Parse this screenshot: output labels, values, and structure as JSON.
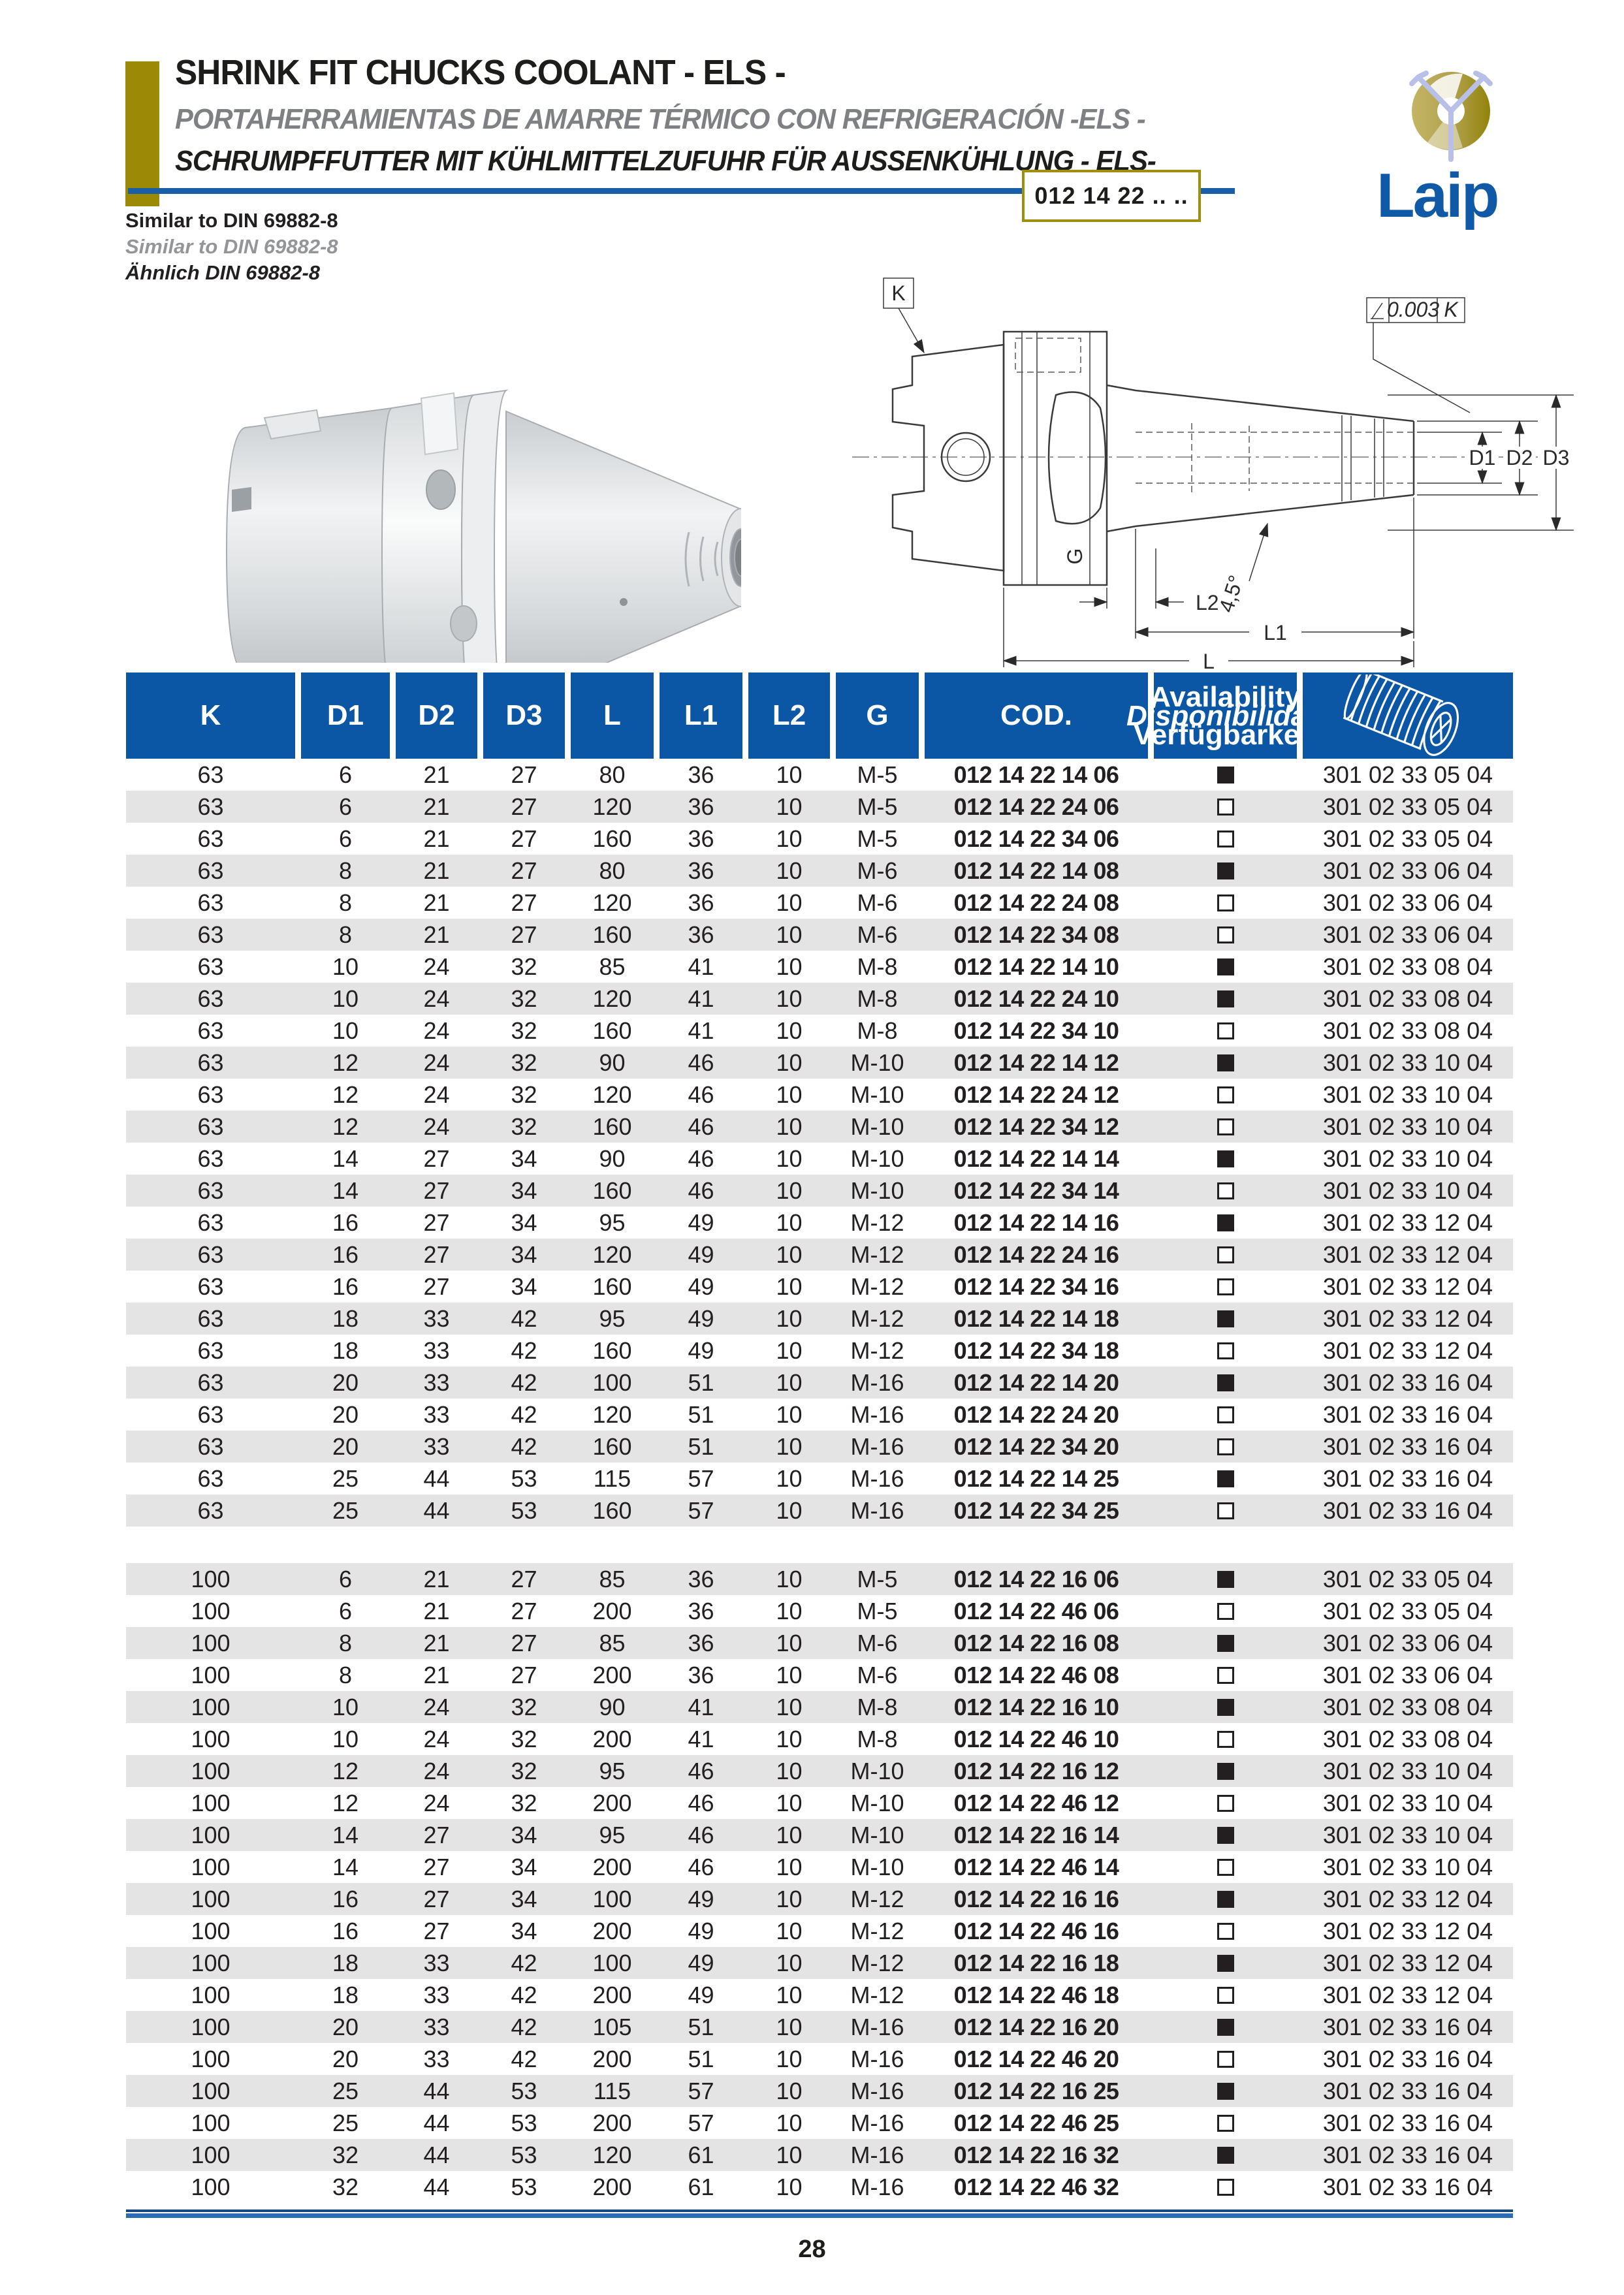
{
  "header": {
    "title_en": "SHRINK FIT CHUCKS COOLANT  - ELS -",
    "title_es": "PORTAHERRAMIENTAS DE AMARRE TÉRMICO CON REFRIGERACIÓN -ELS -",
    "title_de": "SCHRUMPFFUTTER MIT KÜHLMITTELZUFUHR FÜR AUSSENKÜHLUNG  - ELS-",
    "part_code": "012 14 22 .. ..",
    "brand": "Laip"
  },
  "standards": [
    "Similar to DIN 69882-8",
    "Similar to DIN 69882-8",
    "Ähnlich DIN 69882-8"
  ],
  "drawing": {
    "k": "K",
    "tol_value": "0.003",
    "tol_ref": "K",
    "d1": "D1",
    "d2": "D2",
    "d3": "D3",
    "g": "G",
    "angle": "4,5°",
    "l2": "L2",
    "l1": "L1",
    "l": "L"
  },
  "table": {
    "columns": [
      "K",
      "D1",
      "D2",
      "D3",
      "L",
      "L1",
      "L2",
      "G",
      "COD."
    ],
    "availability_header": [
      "Availability",
      "Disponibilidad",
      "Verfügbarkeit"
    ],
    "sections": [
      {
        "rows": [
          {
            "v": [
              "63",
              "6",
              "21",
              "27",
              "80",
              "36",
              "10",
              "M-5"
            ],
            "cod": "012 14 22 14 06",
            "avail": "filled",
            "screw": "301 02 33 05 04"
          },
          {
            "v": [
              "63",
              "6",
              "21",
              "27",
              "120",
              "36",
              "10",
              "M-5"
            ],
            "cod": "012 14 22 24 06",
            "avail": "empty",
            "screw": "301 02 33 05 04"
          },
          {
            "v": [
              "63",
              "6",
              "21",
              "27",
              "160",
              "36",
              "10",
              "M-5"
            ],
            "cod": "012 14 22 34 06",
            "avail": "empty",
            "screw": "301 02 33 05 04"
          },
          {
            "v": [
              "63",
              "8",
              "21",
              "27",
              "80",
              "36",
              "10",
              "M-6"
            ],
            "cod": "012 14 22 14 08",
            "avail": "filled",
            "screw": "301 02 33 06 04"
          },
          {
            "v": [
              "63",
              "8",
              "21",
              "27",
              "120",
              "36",
              "10",
              "M-6"
            ],
            "cod": "012 14 22 24 08",
            "avail": "empty",
            "screw": "301 02 33 06 04"
          },
          {
            "v": [
              "63",
              "8",
              "21",
              "27",
              "160",
              "36",
              "10",
              "M-6"
            ],
            "cod": "012 14 22 34 08",
            "avail": "empty",
            "screw": "301 02 33 06 04"
          },
          {
            "v": [
              "63",
              "10",
              "24",
              "32",
              "85",
              "41",
              "10",
              "M-8"
            ],
            "cod": "012 14 22 14 10",
            "avail": "filled",
            "screw": "301 02 33 08 04"
          },
          {
            "v": [
              "63",
              "10",
              "24",
              "32",
              "120",
              "41",
              "10",
              "M-8"
            ],
            "cod": "012 14 22 24 10",
            "avail": "filled",
            "screw": "301 02 33 08 04"
          },
          {
            "v": [
              "63",
              "10",
              "24",
              "32",
              "160",
              "41",
              "10",
              "M-8"
            ],
            "cod": "012 14 22 34 10",
            "avail": "empty",
            "screw": "301 02 33 08 04"
          },
          {
            "v": [
              "63",
              "12",
              "24",
              "32",
              "90",
              "46",
              "10",
              "M-10"
            ],
            "cod": "012 14 22 14 12",
            "avail": "filled",
            "screw": "301 02 33 10 04"
          },
          {
            "v": [
              "63",
              "12",
              "24",
              "32",
              "120",
              "46",
              "10",
              "M-10"
            ],
            "cod": "012 14 22 24 12",
            "avail": "empty",
            "screw": "301 02 33 10 04"
          },
          {
            "v": [
              "63",
              "12",
              "24",
              "32",
              "160",
              "46",
              "10",
              "M-10"
            ],
            "cod": "012 14 22 34 12",
            "avail": "empty",
            "screw": "301 02 33 10 04"
          },
          {
            "v": [
              "63",
              "14",
              "27",
              "34",
              "90",
              "46",
              "10",
              "M-10"
            ],
            "cod": "012 14 22 14 14",
            "avail": "filled",
            "screw": "301 02 33 10 04"
          },
          {
            "v": [
              "63",
              "14",
              "27",
              "34",
              "160",
              "46",
              "10",
              "M-10"
            ],
            "cod": "012 14 22 34 14",
            "avail": "empty",
            "screw": "301 02 33 10 04"
          },
          {
            "v": [
              "63",
              "16",
              "27",
              "34",
              "95",
              "49",
              "10",
              "M-12"
            ],
            "cod": "012 14 22 14 16",
            "avail": "filled",
            "screw": "301 02 33 12 04"
          },
          {
            "v": [
              "63",
              "16",
              "27",
              "34",
              "120",
              "49",
              "10",
              "M-12"
            ],
            "cod": "012 14 22 24 16",
            "avail": "empty",
            "screw": "301 02 33 12 04"
          },
          {
            "v": [
              "63",
              "16",
              "27",
              "34",
              "160",
              "49",
              "10",
              "M-12"
            ],
            "cod": "012 14 22 34 16",
            "avail": "empty",
            "screw": "301 02 33 12 04"
          },
          {
            "v": [
              "63",
              "18",
              "33",
              "42",
              "95",
              "49",
              "10",
              "M-12"
            ],
            "cod": "012 14 22 14 18",
            "avail": "filled",
            "screw": "301 02 33 12 04"
          },
          {
            "v": [
              "63",
              "18",
              "33",
              "42",
              "160",
              "49",
              "10",
              "M-12"
            ],
            "cod": "012 14 22 34 18",
            "avail": "empty",
            "screw": "301 02 33 12 04"
          },
          {
            "v": [
              "63",
              "20",
              "33",
              "42",
              "100",
              "51",
              "10",
              "M-16"
            ],
            "cod": "012 14 22 14 20",
            "avail": "filled",
            "screw": "301 02 33 16 04"
          },
          {
            "v": [
              "63",
              "20",
              "33",
              "42",
              "120",
              "51",
              "10",
              "M-16"
            ],
            "cod": "012 14 22 24 20",
            "avail": "empty",
            "screw": "301 02 33 16 04"
          },
          {
            "v": [
              "63",
              "20",
              "33",
              "42",
              "160",
              "51",
              "10",
              "M-16"
            ],
            "cod": "012 14 22 34 20",
            "avail": "empty",
            "screw": "301 02 33 16 04"
          },
          {
            "v": [
              "63",
              "25",
              "44",
              "53",
              "115",
              "57",
              "10",
              "M-16"
            ],
            "cod": "012 14 22 14 25",
            "avail": "filled",
            "screw": "301 02 33 16 04"
          },
          {
            "v": [
              "63",
              "25",
              "44",
              "53",
              "160",
              "57",
              "10",
              "M-16"
            ],
            "cod": "012 14 22 34 25",
            "avail": "empty",
            "screw": "301 02 33 16 04"
          }
        ]
      },
      {
        "rows": [
          {
            "v": [
              "100",
              "6",
              "21",
              "27",
              "85",
              "36",
              "10",
              "M-5"
            ],
            "cod": "012 14 22 16 06",
            "avail": "filled",
            "screw": "301 02 33 05 04"
          },
          {
            "v": [
              "100",
              "6",
              "21",
              "27",
              "200",
              "36",
              "10",
              "M-5"
            ],
            "cod": "012 14 22 46 06",
            "avail": "empty",
            "screw": "301 02 33 05 04"
          },
          {
            "v": [
              "100",
              "8",
              "21",
              "27",
              "85",
              "36",
              "10",
              "M-6"
            ],
            "cod": "012 14 22 16 08",
            "avail": "filled",
            "screw": "301 02 33 06 04"
          },
          {
            "v": [
              "100",
              "8",
              "21",
              "27",
              "200",
              "36",
              "10",
              "M-6"
            ],
            "cod": "012 14 22 46 08",
            "avail": "empty",
            "screw": "301 02 33 06 04"
          },
          {
            "v": [
              "100",
              "10",
              "24",
              "32",
              "90",
              "41",
              "10",
              "M-8"
            ],
            "cod": "012 14 22 16 10",
            "avail": "filled",
            "screw": "301 02 33 08 04"
          },
          {
            "v": [
              "100",
              "10",
              "24",
              "32",
              "200",
              "41",
              "10",
              "M-8"
            ],
            "cod": "012 14 22 46 10",
            "avail": "empty",
            "screw": "301 02 33 08 04"
          },
          {
            "v": [
              "100",
              "12",
              "24",
              "32",
              "95",
              "46",
              "10",
              "M-10"
            ],
            "cod": "012 14 22 16 12",
            "avail": "filled",
            "screw": "301 02 33 10 04"
          },
          {
            "v": [
              "100",
              "12",
              "24",
              "32",
              "200",
              "46",
              "10",
              "M-10"
            ],
            "cod": "012 14 22 46 12",
            "avail": "empty",
            "screw": "301 02 33 10 04"
          },
          {
            "v": [
              "100",
              "14",
              "27",
              "34",
              "95",
              "46",
              "10",
              "M-10"
            ],
            "cod": "012 14 22 16 14",
            "avail": "filled",
            "screw": "301 02 33 10 04"
          },
          {
            "v": [
              "100",
              "14",
              "27",
              "34",
              "200",
              "46",
              "10",
              "M-10"
            ],
            "cod": "012 14 22 46 14",
            "avail": "empty",
            "screw": "301 02 33 10 04"
          },
          {
            "v": [
              "100",
              "16",
              "27",
              "34",
              "100",
              "49",
              "10",
              "M-12"
            ],
            "cod": "012 14 22 16 16",
            "avail": "filled",
            "screw": "301 02 33 12 04"
          },
          {
            "v": [
              "100",
              "16",
              "27",
              "34",
              "200",
              "49",
              "10",
              "M-12"
            ],
            "cod": "012 14 22 46 16",
            "avail": "empty",
            "screw": "301 02 33 12 04"
          },
          {
            "v": [
              "100",
              "18",
              "33",
              "42",
              "100",
              "49",
              "10",
              "M-12"
            ],
            "cod": "012 14 22 16 18",
            "avail": "filled",
            "screw": "301 02 33 12 04"
          },
          {
            "v": [
              "100",
              "18",
              "33",
              "42",
              "200",
              "49",
              "10",
              "M-12"
            ],
            "cod": "012 14 22 46 18",
            "avail": "empty",
            "screw": "301 02 33 12 04"
          },
          {
            "v": [
              "100",
              "20",
              "33",
              "42",
              "105",
              "51",
              "10",
              "M-16"
            ],
            "cod": "012 14 22 16 20",
            "avail": "filled",
            "screw": "301 02 33 16 04"
          },
          {
            "v": [
              "100",
              "20",
              "33",
              "42",
              "200",
              "51",
              "10",
              "M-16"
            ],
            "cod": "012 14 22 46 20",
            "avail": "empty",
            "screw": "301 02 33 16 04"
          },
          {
            "v": [
              "100",
              "25",
              "44",
              "53",
              "115",
              "57",
              "10",
              "M-16"
            ],
            "cod": "012 14 22 16 25",
            "avail": "filled",
            "screw": "301 02 33 16 04"
          },
          {
            "v": [
              "100",
              "25",
              "44",
              "53",
              "200",
              "57",
              "10",
              "M-16"
            ],
            "cod": "012 14 22 46 25",
            "avail": "empty",
            "screw": "301 02 33 16 04"
          },
          {
            "v": [
              "100",
              "32",
              "44",
              "53",
              "120",
              "61",
              "10",
              "M-16"
            ],
            "cod": "012 14 22 16 32",
            "avail": "filled",
            "screw": "301 02 33 16 04"
          },
          {
            "v": [
              "100",
              "32",
              "44",
              "53",
              "200",
              "61",
              "10",
              "M-16"
            ],
            "cod": "012 14 22 46 32",
            "avail": "empty",
            "screw": "301 02 33 16 04"
          }
        ]
      }
    ]
  },
  "page_number": "28",
  "colors": {
    "header_blue": "#0B57A5",
    "rule_blue": "#1B5EA8",
    "gold": "#9C8A06",
    "box_border_gold": "#A08F0A",
    "stripe_gray": "#E4E4E4",
    "title_gray": "#7E8083",
    "text_dark": "#231F20",
    "logo_blue": "#1059A6",
    "logo_spoke_blue": "#B9C0E8"
  }
}
